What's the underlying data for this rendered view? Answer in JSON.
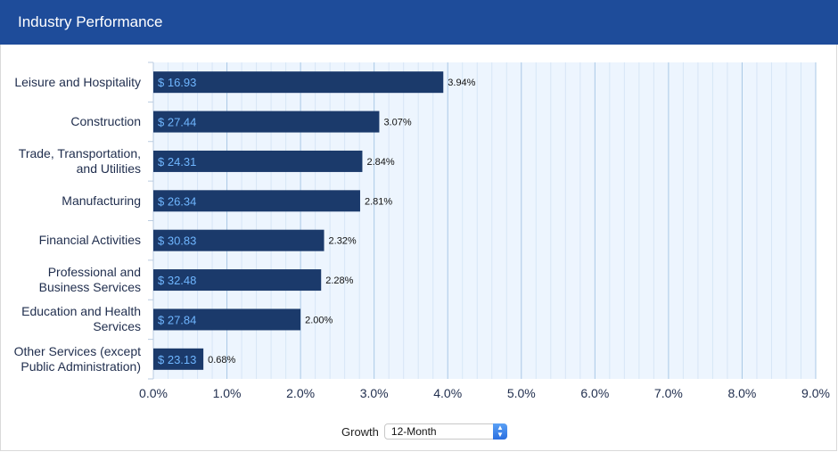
{
  "header": {
    "title": "Industry Performance"
  },
  "controls": {
    "growth_label": "Growth",
    "growth_select_value": "12-Month",
    "arrow_icon": "select-arrows-icon"
  },
  "colors": {
    "header_bg": "#1e4c9a",
    "bar": "#1b3a6b",
    "bar_label": "#6fb6ff",
    "plot_bg": "#edf5fe"
  },
  "chart_data": {
    "type": "bar",
    "orientation": "horizontal",
    "title": "Industry Performance",
    "categories": [
      [
        "Leisure and Hospitality"
      ],
      [
        "Construction"
      ],
      [
        "Trade, Transportation,",
        "and Utilities"
      ],
      [
        "Manufacturing"
      ],
      [
        "Financial Activities"
      ],
      [
        "Professional and",
        "Business Services"
      ],
      [
        "Education and Health",
        "Services"
      ],
      [
        "Other Services (except",
        "Public Administration)"
      ]
    ],
    "values": [
      3.94,
      3.07,
      2.84,
      2.81,
      2.32,
      2.28,
      2.0,
      0.68
    ],
    "value_labels": [
      "3.94%",
      "3.07%",
      "2.84%",
      "2.81%",
      "2.32%",
      "2.28%",
      "2.00%",
      "0.68%"
    ],
    "bar_inner_labels": [
      "$ 16.93",
      "$ 27.44",
      "$ 24.31",
      "$ 26.34",
      "$ 30.83",
      "$ 32.48",
      "$ 27.84",
      "$ 23.13"
    ],
    "xlim": [
      0,
      9
    ],
    "xticks": [
      "0.0%",
      "1.0%",
      "2.0%",
      "3.0%",
      "4.0%",
      "5.0%",
      "6.0%",
      "7.0%",
      "8.0%",
      "9.0%"
    ],
    "grid": true
  }
}
